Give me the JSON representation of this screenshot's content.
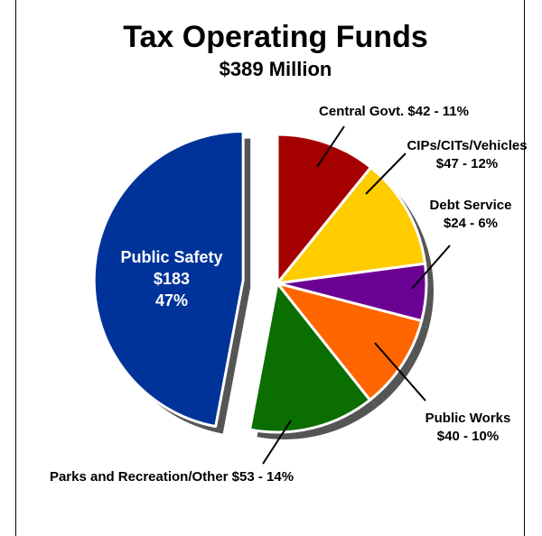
{
  "chart_data": {
    "type": "pie",
    "title": "Tax Operating Funds",
    "subtitle": "$389 Million",
    "slices": [
      {
        "name": "Central Govt.",
        "value": 42,
        "percent": 11,
        "color": "#a50000",
        "label_lines": [
          "Central Govt. $42 - 11%"
        ]
      },
      {
        "name": "CIPs/CITs/Vehicles",
        "value": 47,
        "percent": 12,
        "color": "#ffcc00",
        "label_lines": [
          "CIPs/CITs/Vehicles",
          "$47 - 12%"
        ]
      },
      {
        "name": "Debt Service",
        "value": 24,
        "percent": 6,
        "color": "#6a0094",
        "label_lines": [
          "Debt Service",
          "$24 - 6%"
        ]
      },
      {
        "name": "Public Works",
        "value": 40,
        "percent": 10,
        "color": "#ff6600",
        "label_lines": [
          "Public Works",
          "$40 - 10%"
        ]
      },
      {
        "name": "Parks and Recreation/Other",
        "value": 53,
        "percent": 14,
        "color": "#0a6e00",
        "label_lines": [
          "Parks and Recreation/Other $53 - 14%"
        ]
      },
      {
        "name": "Public Safety",
        "value": 183,
        "percent": 47,
        "color": "#003399",
        "label_lines": [
          "Public Safety",
          "$183",
          "47%"
        ],
        "exploded": true
      }
    ]
  }
}
